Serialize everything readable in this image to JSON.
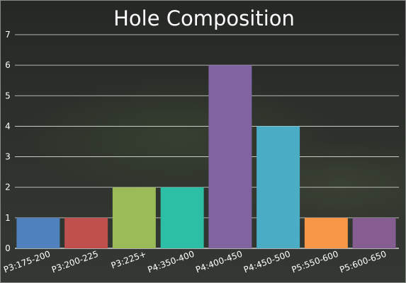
{
  "chart_data": {
    "type": "bar",
    "title": "Hole Composition",
    "xlabel": "",
    "ylabel": "",
    "categories": [
      "P3:175-200",
      "P3:200-225",
      "P3:225+",
      "P4:350-400",
      "P4:400-450",
      "P4:450-500",
      "P5:550-600",
      "P5:600-650"
    ],
    "values": [
      1,
      1,
      2,
      2,
      6,
      4,
      1,
      1
    ],
    "colors": [
      "#4f81bd",
      "#c0504d",
      "#9bbb59",
      "#2cbfa5",
      "#8064a2",
      "#4bacc6",
      "#f79646",
      "#855d90"
    ],
    "ylim": [
      0,
      7
    ],
    "yticks": [
      0,
      1,
      2,
      3,
      4,
      5,
      6,
      7
    ],
    "grid": true,
    "legend": "none"
  }
}
